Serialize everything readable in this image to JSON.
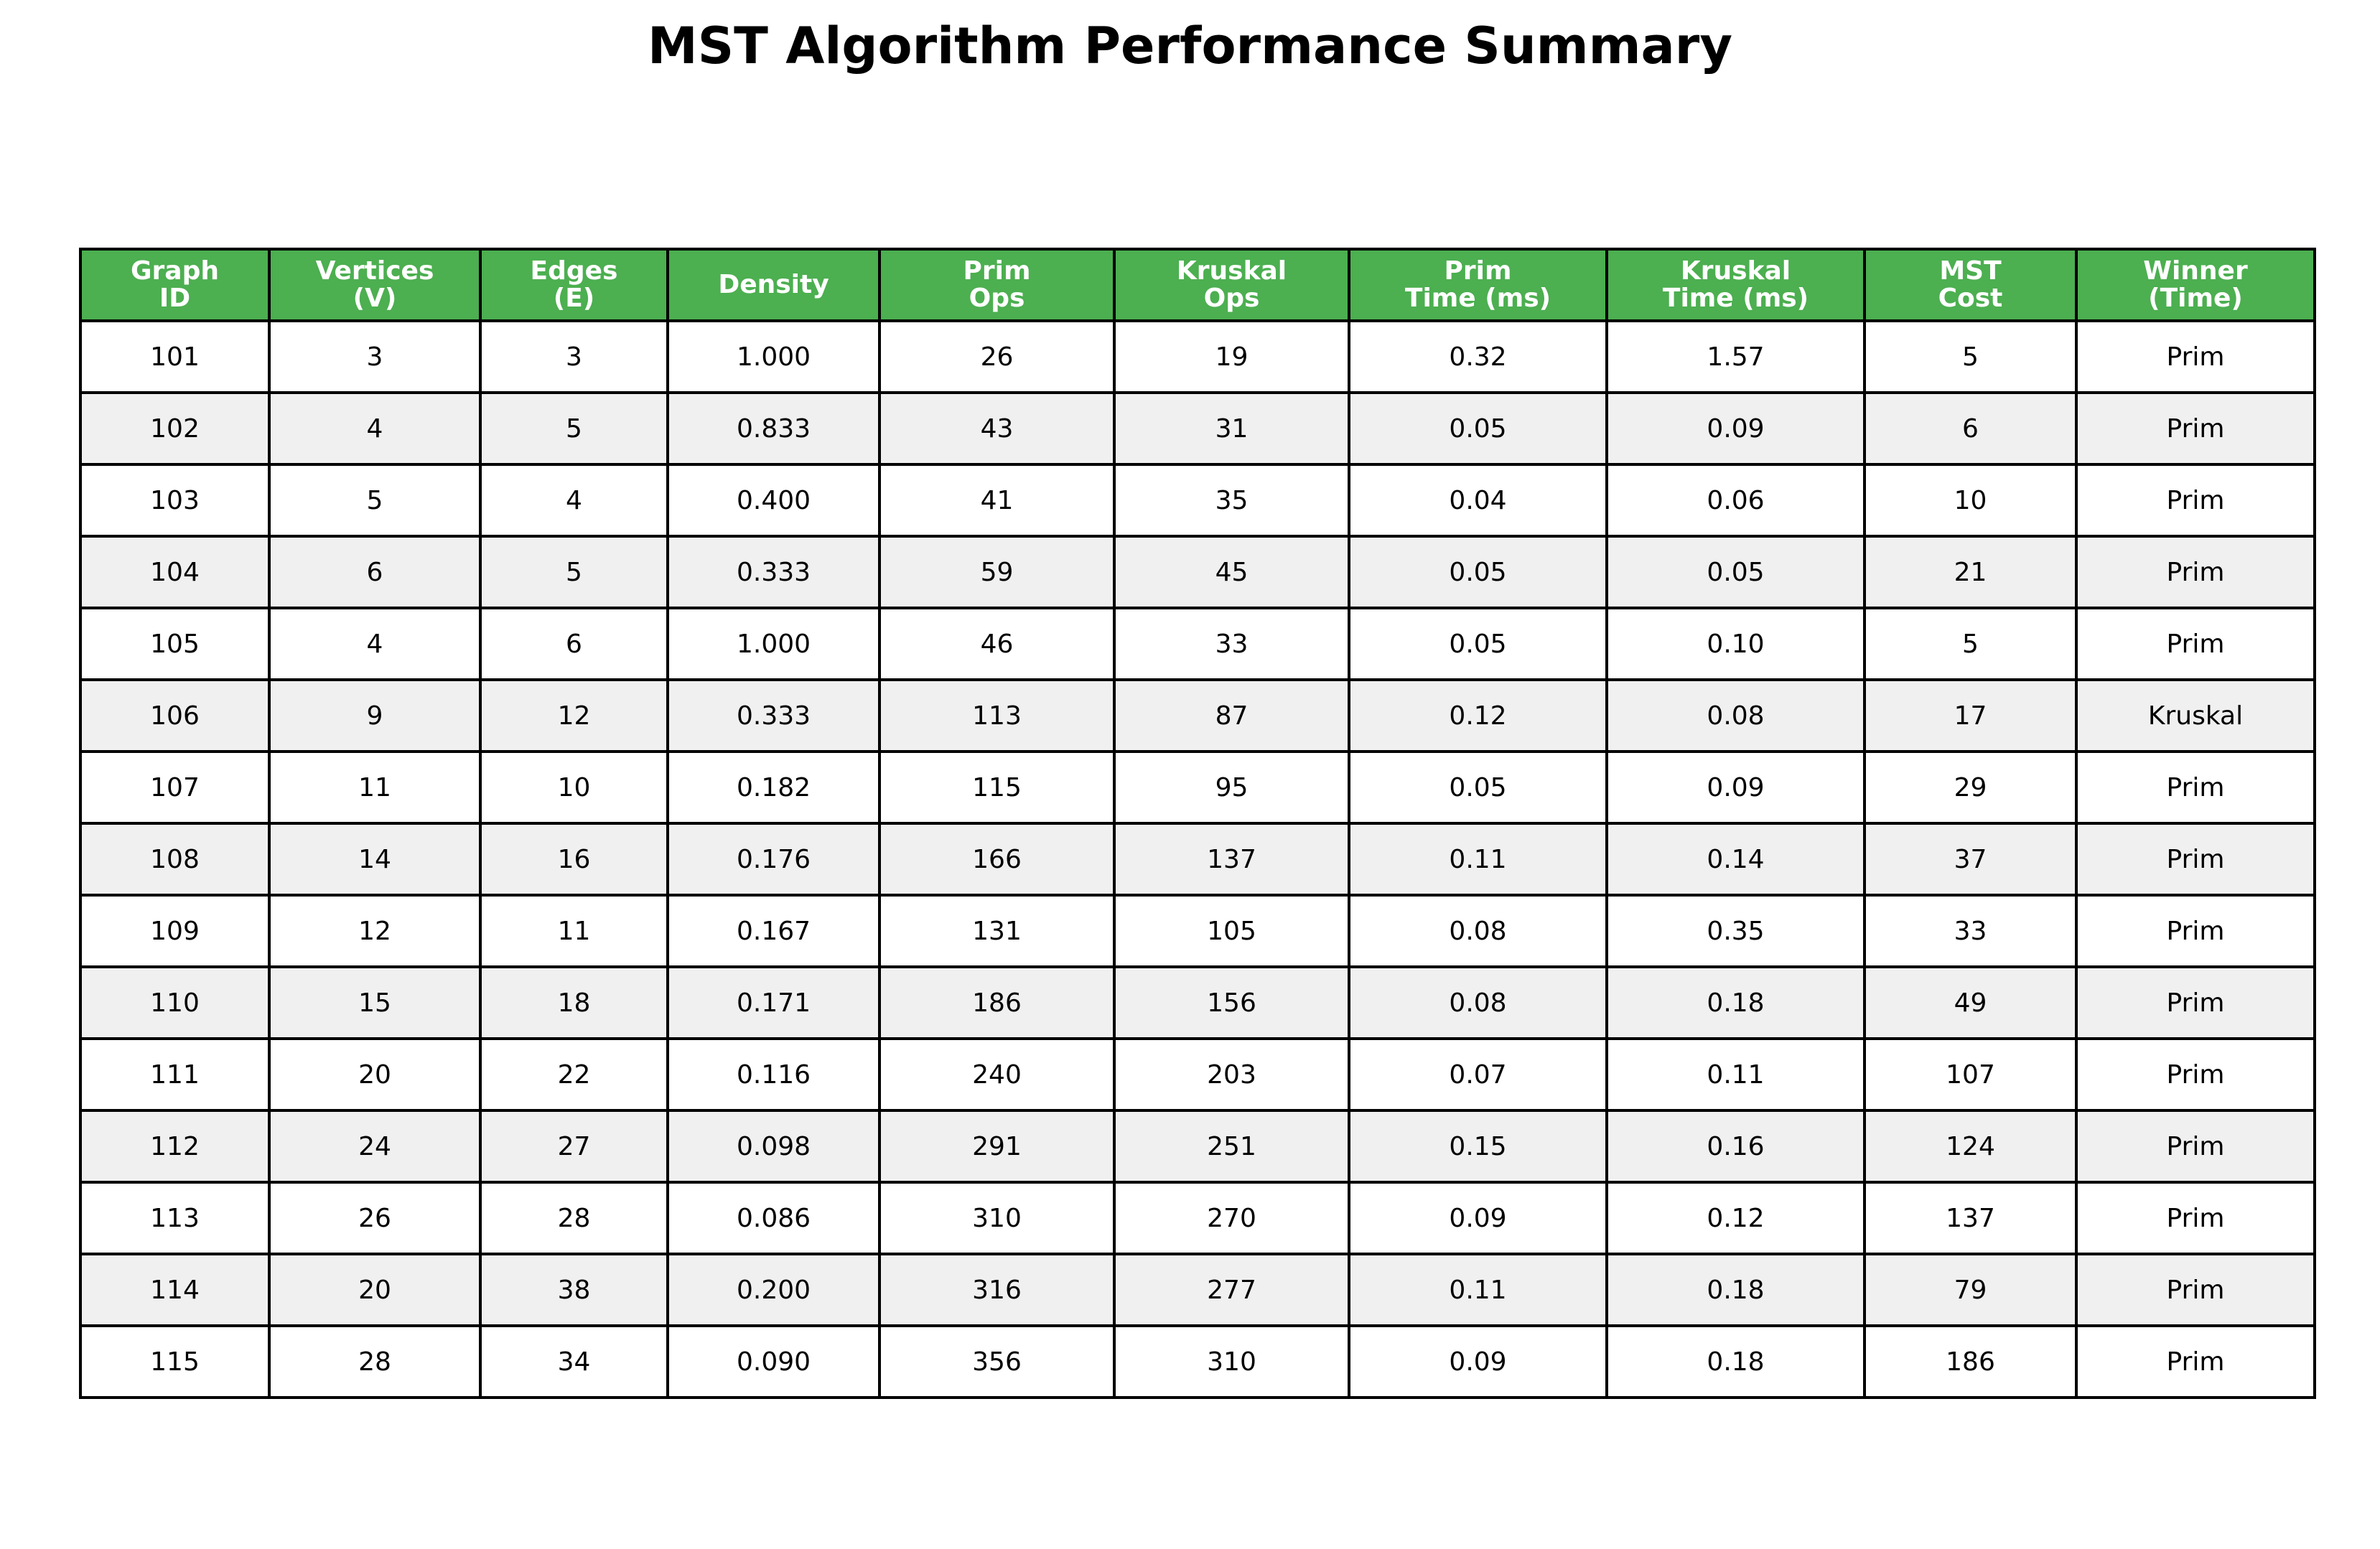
{
  "chart_data": {
    "type": "table",
    "title": "MST Algorithm Performance Summary",
    "colors": {
      "header_bg": "#4caf50",
      "header_text": "#ffffff",
      "row_alt_bg": "#f0f0f0",
      "row_bg": "#ffffff",
      "border": "#000000"
    },
    "columns": [
      [
        "Graph",
        "ID"
      ],
      [
        "Vertices",
        "(V)"
      ],
      [
        "Edges",
        "(E)"
      ],
      [
        "Density"
      ],
      [
        "Prim",
        "Ops"
      ],
      [
        "Kruskal",
        "Ops"
      ],
      [
        "Prim",
        "Time (ms)"
      ],
      [
        "Kruskal",
        "Time (ms)"
      ],
      [
        "MST",
        "Cost"
      ],
      [
        "Winner",
        "(Time)"
      ]
    ],
    "rows": [
      [
        "101",
        "3",
        "3",
        "1.000",
        "26",
        "19",
        "0.32",
        "1.57",
        "5",
        "Prim"
      ],
      [
        "102",
        "4",
        "5",
        "0.833",
        "43",
        "31",
        "0.05",
        "0.09",
        "6",
        "Prim"
      ],
      [
        "103",
        "5",
        "4",
        "0.400",
        "41",
        "35",
        "0.04",
        "0.06",
        "10",
        "Prim"
      ],
      [
        "104",
        "6",
        "5",
        "0.333",
        "59",
        "45",
        "0.05",
        "0.05",
        "21",
        "Prim"
      ],
      [
        "105",
        "4",
        "6",
        "1.000",
        "46",
        "33",
        "0.05",
        "0.10",
        "5",
        "Prim"
      ],
      [
        "106",
        "9",
        "12",
        "0.333",
        "113",
        "87",
        "0.12",
        "0.08",
        "17",
        "Kruskal"
      ],
      [
        "107",
        "11",
        "10",
        "0.182",
        "115",
        "95",
        "0.05",
        "0.09",
        "29",
        "Prim"
      ],
      [
        "108",
        "14",
        "16",
        "0.176",
        "166",
        "137",
        "0.11",
        "0.14",
        "37",
        "Prim"
      ],
      [
        "109",
        "12",
        "11",
        "0.167",
        "131",
        "105",
        "0.08",
        "0.35",
        "33",
        "Prim"
      ],
      [
        "110",
        "15",
        "18",
        "0.171",
        "186",
        "156",
        "0.08",
        "0.18",
        "49",
        "Prim"
      ],
      [
        "111",
        "20",
        "22",
        "0.116",
        "240",
        "203",
        "0.07",
        "0.11",
        "107",
        "Prim"
      ],
      [
        "112",
        "24",
        "27",
        "0.098",
        "291",
        "251",
        "0.15",
        "0.16",
        "124",
        "Prim"
      ],
      [
        "113",
        "26",
        "28",
        "0.086",
        "310",
        "270",
        "0.09",
        "0.12",
        "137",
        "Prim"
      ],
      [
        "114",
        "20",
        "38",
        "0.200",
        "316",
        "277",
        "0.11",
        "0.18",
        "79",
        "Prim"
      ],
      [
        "115",
        "28",
        "34",
        "0.090",
        "356",
        "310",
        "0.09",
        "0.18",
        "186",
        "Prim"
      ]
    ]
  }
}
